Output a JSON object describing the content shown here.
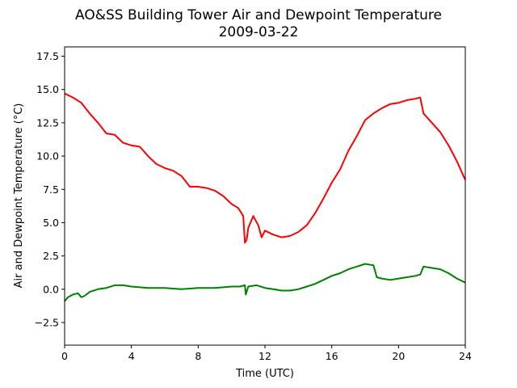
{
  "chart_data": {
    "type": "line",
    "title": "AO&SS Building Tower Air and Dewpoint Temperature",
    "subtitle": "2009-03-22",
    "xlabel": "Time (UTC)",
    "ylabel": "Air and Dewpoint Temperature (°C)",
    "xlim": [
      0,
      24
    ],
    "ylim": [
      -4.2,
      18.2
    ],
    "xticks": [
      0,
      4,
      8,
      12,
      16,
      20,
      24
    ],
    "xtick_labels": [
      "0",
      "4",
      "8",
      "12",
      "16",
      "20",
      "24"
    ],
    "yticks": [
      -2.5,
      0.0,
      2.5,
      5.0,
      7.5,
      10.0,
      12.5,
      15.0,
      17.5
    ],
    "ytick_labels": [
      "−2.5",
      "0.0",
      "2.5",
      "5.0",
      "7.5",
      "10.0",
      "12.5",
      "15.0",
      "17.5"
    ],
    "grid": false,
    "legend": "none",
    "series": [
      {
        "color": "#ff0000",
        "x": [
          0,
          0.5,
          1,
          1.5,
          2,
          2.5,
          3,
          3.5,
          4,
          4.5,
          5,
          5.5,
          6,
          6.5,
          7,
          7.5,
          8,
          8.5,
          9,
          9.5,
          10,
          10.4,
          10.7,
          10.8,
          10.9,
          11,
          11.3,
          11.6,
          11.8,
          12,
          12.5,
          13,
          13.5,
          14,
          14.5,
          15,
          15.5,
          16,
          16.5,
          17,
          17.5,
          18,
          18.5,
          19,
          19.5,
          20,
          20.5,
          21,
          21.3,
          21.5,
          22,
          22.5,
          23,
          23.5,
          24
        ],
        "y": [
          14.7,
          14.4,
          14.0,
          13.2,
          12.5,
          11.7,
          11.6,
          11.0,
          10.8,
          10.7,
          10.0,
          9.4,
          9.1,
          8.9,
          8.5,
          7.7,
          7.7,
          7.6,
          7.4,
          7.0,
          6.4,
          6.1,
          5.5,
          3.5,
          3.7,
          4.6,
          5.5,
          4.8,
          3.9,
          4.4,
          4.1,
          3.9,
          4.0,
          4.3,
          4.8,
          5.7,
          6.8,
          8.0,
          9.0,
          10.4,
          11.5,
          12.7,
          13.2,
          13.6,
          13.9,
          14.0,
          14.2,
          14.3,
          14.4,
          13.2,
          12.5,
          11.8,
          10.8,
          9.6,
          8.2
        ]
      },
      {
        "color": "#008000",
        "x": [
          0,
          0.2,
          0.5,
          0.8,
          1,
          1.2,
          1.5,
          2,
          2.5,
          3,
          3.5,
          4,
          5,
          6,
          7,
          8,
          9,
          10,
          10.5,
          10.8,
          10.85,
          11,
          11.5,
          12,
          12.5,
          13,
          13.5,
          14,
          14.5,
          15,
          15.5,
          16,
          16.5,
          17,
          17.5,
          18,
          18.5,
          18.7,
          19,
          19.5,
          20,
          20.5,
          21,
          21.3,
          21.5,
          22,
          22.5,
          23,
          23.5,
          24
        ],
        "y": [
          -0.9,
          -0.6,
          -0.4,
          -0.3,
          -0.6,
          -0.5,
          -0.2,
          0.0,
          0.1,
          0.3,
          0.3,
          0.2,
          0.1,
          0.1,
          0.0,
          0.1,
          0.1,
          0.2,
          0.2,
          0.3,
          -0.4,
          0.2,
          0.3,
          0.1,
          0.0,
          -0.1,
          -0.1,
          0.0,
          0.2,
          0.4,
          0.7,
          1.0,
          1.2,
          1.5,
          1.7,
          1.9,
          1.8,
          0.9,
          0.8,
          0.7,
          0.8,
          0.9,
          1.0,
          1.1,
          1.7,
          1.6,
          1.5,
          1.2,
          0.8,
          0.5
        ]
      }
    ]
  }
}
